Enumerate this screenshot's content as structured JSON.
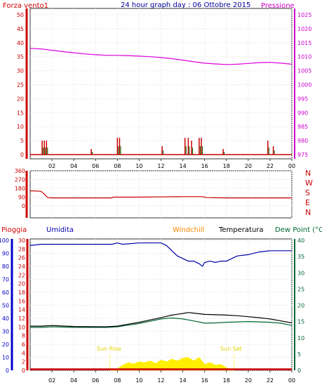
{
  "chart_data": [
    {
      "type": "line",
      "panel": "wind-pressure",
      "title": "24 hour graph day : 06 Ottobre 2015",
      "left_label": "Forza vento1",
      "right_label": "Pressione",
      "x_ticks": [
        "02",
        "04",
        "06",
        "08",
        "10",
        "12",
        "14",
        "16",
        "18",
        "20",
        "22",
        "00"
      ],
      "x_range": [
        0,
        24
      ],
      "ylim_left": [
        0,
        50
      ],
      "y_ticks_left": [
        0,
        5,
        10,
        15,
        20,
        25,
        30,
        35,
        40,
        45,
        50
      ],
      "ylim_right": [
        975,
        1025
      ],
      "y_ticks_right": [
        975,
        980,
        985,
        990,
        995,
        1000,
        1005,
        1010,
        1015,
        1020,
        1025
      ],
      "colors": {
        "wind": "#cc0000",
        "gust": "#006600",
        "pressure": "#dd00dd",
        "left_axis": "#cc0000",
        "right_axis": "#cc00cc",
        "title": "#000099"
      },
      "series": [
        {
          "name": "Pressione",
          "axis": "right",
          "x": [
            0,
            1,
            2,
            3,
            4,
            5,
            6,
            7,
            8,
            9,
            10,
            11,
            12,
            13,
            14,
            15,
            16,
            17,
            18,
            19,
            20,
            21,
            22,
            23,
            24
          ],
          "y": [
            1013,
            1012.8,
            1012.3,
            1011.8,
            1011.4,
            1011,
            1010.7,
            1010.5,
            1010.5,
            1010.4,
            1010.2,
            1010,
            1009.7,
            1009.3,
            1008.8,
            1008.2,
            1007.7,
            1007.4,
            1007.2,
            1007.3,
            1007.6,
            1007.9,
            1008,
            1007.7,
            1007.3
          ]
        },
        {
          "name": "Forza vento1",
          "axis": "left",
          "spikes": [
            [
              1.1,
              5
            ],
            [
              1.3,
              5
            ],
            [
              1.5,
              5
            ],
            [
              5.6,
              2
            ],
            [
              8.0,
              6
            ],
            [
              8.2,
              6
            ],
            [
              12.1,
              3
            ],
            [
              14.2,
              6
            ],
            [
              14.5,
              6
            ],
            [
              14.8,
              5
            ],
            [
              15.5,
              6
            ],
            [
              15.7,
              6
            ],
            [
              17.7,
              2
            ],
            [
              21.8,
              5
            ],
            [
              22.3,
              3
            ]
          ]
        }
      ]
    },
    {
      "type": "line",
      "panel": "wind-direction",
      "right_labels": [
        "N",
        "W",
        "S",
        "E",
        "N"
      ],
      "x_range": [
        0,
        24
      ],
      "ylim": [
        0,
        360
      ],
      "y_ticks": [
        0,
        90,
        180,
        270,
        360
      ],
      "colors": {
        "direction": "#cc0000",
        "axis": "#cc0000"
      },
      "series": [
        {
          "name": "direction",
          "x": [
            0,
            1.0,
            1.3,
            1.6,
            2,
            4,
            6,
            7.5,
            7.6,
            8,
            10,
            12,
            14,
            15.8,
            16.2,
            18,
            20,
            22,
            24
          ],
          "y": [
            155,
            150,
            120,
            85,
            82,
            82,
            82,
            82,
            90,
            90,
            90,
            92,
            95,
            95,
            85,
            82,
            82,
            82,
            82
          ]
        }
      ]
    },
    {
      "type": "line",
      "panel": "rain-humidity-temperature",
      "labels": {
        "rain": "Pioggia",
        "humidity": "Umidita",
        "windchill": "Windchill",
        "temperature": "Temperatura",
        "dewpoint": "Dew Point (°C"
      },
      "annotations": [
        "Sun Rise",
        "Sun Set"
      ],
      "sun_rise_x": 7.3,
      "sun_set_x": 18.7,
      "x_ticks": [
        "02",
        "04",
        "06",
        "08",
        "10",
        "12",
        "14",
        "16",
        "18",
        "20",
        "22",
        "00"
      ],
      "x_range": [
        0,
        24
      ],
      "ylim_humidity": [
        0,
        100
      ],
      "y_ticks_humidity": [
        0,
        10,
        20,
        30,
        40,
        50,
        60,
        70,
        80,
        90,
        100
      ],
      "ylim_rain": [
        0,
        30
      ],
      "y_ticks_rain": [
        0,
        2,
        4,
        6,
        8,
        10,
        12,
        14,
        16,
        18,
        20,
        22,
        24,
        26,
        28,
        30
      ],
      "ylim_temp": [
        0,
        40
      ],
      "y_ticks_temp": [
        0,
        5,
        10,
        15,
        20,
        25,
        30,
        35,
        40
      ],
      "colors": {
        "humidity": "#0000aa",
        "temperature": "#000000",
        "dewpoint": "#006633",
        "rain": "#cc0000",
        "windchill": "#ff8800",
        "solar": "#ffee00",
        "rain_axis": "#cc0000",
        "humidity_axis": "#0000cc",
        "temp_axis": "#006633"
      },
      "series": [
        {
          "name": "Umidita",
          "axis": "humidity",
          "x": [
            0,
            1,
            2,
            4,
            6,
            7.5,
            8,
            8.5,
            10,
            11,
            12,
            12.5,
            13,
            13.5,
            14,
            14.5,
            15,
            15.5,
            15.8,
            16,
            16.5,
            17,
            17.5,
            18,
            18.5,
            19,
            20,
            21,
            22,
            23,
            24
          ],
          "y": [
            96,
            97,
            97,
            97,
            97,
            97,
            98,
            97,
            98,
            98,
            98,
            96,
            92,
            88,
            86,
            84,
            84,
            82,
            80,
            83,
            84,
            83,
            84,
            84,
            86,
            88,
            89,
            91,
            92,
            92,
            92
          ]
        },
        {
          "name": "Temperatura",
          "axis": "temp",
          "x": [
            0,
            1,
            2,
            4,
            6,
            7,
            8,
            9,
            10,
            11,
            12,
            13,
            14,
            14.5,
            15,
            16,
            17,
            18,
            19,
            20,
            21,
            22,
            23,
            24
          ],
          "y": [
            13.6,
            13.6,
            13.8,
            13.5,
            13.4,
            13.4,
            13.6,
            14.2,
            14.8,
            15.5,
            16.2,
            17.0,
            17.5,
            17.8,
            17.6,
            17.2,
            17.1,
            17.0,
            16.8,
            16.5,
            16.2,
            15.8,
            15.2,
            14.6
          ]
        },
        {
          "name": "Dew Point",
          "axis": "temp",
          "x": [
            0,
            1,
            2,
            4,
            6,
            7,
            8,
            9,
            10,
            11,
            12,
            13,
            14,
            15,
            16,
            17,
            18,
            19,
            20,
            21,
            22,
            23,
            24
          ],
          "y": [
            13.2,
            13.2,
            13.4,
            13.2,
            13.2,
            13.2,
            13.4,
            13.9,
            14.4,
            15.1,
            15.8,
            16.1,
            15.8,
            15.2,
            14.5,
            14.6,
            14.8,
            14.9,
            15.0,
            14.9,
            14.8,
            14.5,
            13.8
          ]
        },
        {
          "name": "Pioggia",
          "axis": "rain",
          "x": [
            0,
            24
          ],
          "y": [
            0,
            0
          ]
        },
        {
          "name": "solar",
          "axis": "rain",
          "x": [
            7.3,
            8,
            8.5,
            9,
            9.5,
            10,
            10.5,
            11,
            11.5,
            12,
            12.5,
            13,
            13.5,
            14,
            14.5,
            15,
            15.5,
            16,
            16.5,
            17,
            17.5,
            18,
            18.3,
            18.7
          ],
          "y": [
            0,
            0.4,
            1.2,
            1.8,
            1.5,
            2.0,
            1.8,
            2.2,
            1.6,
            2.4,
            2.0,
            2.6,
            2.2,
            2.8,
            3.0,
            2.2,
            3.0,
            1.4,
            1.8,
            1.2,
            1.4,
            0.6,
            0.3,
            0
          ]
        }
      ]
    }
  ]
}
